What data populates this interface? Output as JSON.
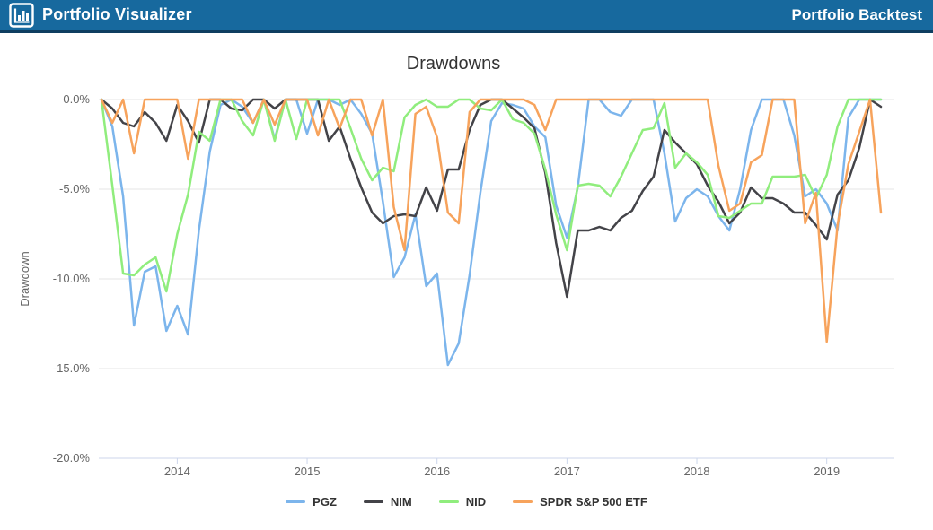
{
  "header": {
    "brand": "Portfolio Visualizer",
    "page_link": "Portfolio Backtest",
    "bg_color": "#17699e",
    "border_color": "#0e3e60"
  },
  "chart_data": {
    "type": "line",
    "title": "Drawdowns",
    "ylabel": "Drawdown",
    "ylim": [
      -20,
      0
    ],
    "grid": true,
    "legend_position": "bottom",
    "y_ticks": [
      0,
      -5,
      -10,
      -15,
      -20
    ],
    "y_tick_labels": [
      "0.0%",
      "-5.0%",
      "-10.0%",
      "-15.0%",
      "-20.0%"
    ],
    "x_tick_labels": [
      "2014",
      "2015",
      "2016",
      "2017",
      "2018",
      "2019"
    ],
    "x": [
      "2013-05",
      "2013-06",
      "2013-07",
      "2013-08",
      "2013-09",
      "2013-10",
      "2013-11",
      "2013-12",
      "2014-01",
      "2014-02",
      "2014-03",
      "2014-04",
      "2014-05",
      "2014-06",
      "2014-07",
      "2014-08",
      "2014-09",
      "2014-10",
      "2014-11",
      "2014-12",
      "2015-01",
      "2015-02",
      "2015-03",
      "2015-04",
      "2015-05",
      "2015-06",
      "2015-07",
      "2015-08",
      "2015-09",
      "2015-10",
      "2015-11",
      "2015-12",
      "2016-01",
      "2016-02",
      "2016-03",
      "2016-04",
      "2016-05",
      "2016-06",
      "2016-07",
      "2016-08",
      "2016-09",
      "2016-10",
      "2016-11",
      "2016-12",
      "2017-01",
      "2017-02",
      "2017-03",
      "2017-04",
      "2017-05",
      "2017-06",
      "2017-07",
      "2017-08",
      "2017-09",
      "2017-10",
      "2017-11",
      "2017-12",
      "2018-01",
      "2018-02",
      "2018-03",
      "2018-04",
      "2018-05",
      "2018-06",
      "2018-07",
      "2018-08",
      "2018-09",
      "2018-10",
      "2018-11",
      "2018-12",
      "2019-01",
      "2019-02",
      "2019-03",
      "2019-04",
      "2019-05"
    ],
    "series": [
      {
        "name": "PGZ",
        "color": "#7cb5ec",
        "values": [
          0,
          -1.5,
          -5.4,
          -12.6,
          -9.6,
          -9.3,
          -12.9,
          -11.5,
          -13.1,
          -7.3,
          -2.9,
          -0.3,
          0,
          -0.4,
          -1.3,
          0,
          -2.2,
          0,
          0,
          -1.9,
          0,
          0,
          -0.3,
          0,
          -0.8,
          -1.9,
          -5.7,
          -9.9,
          -8.8,
          -6.4,
          -10.4,
          -9.7,
          -14.8,
          -13.6,
          -9.8,
          -5.2,
          -1.2,
          -0.2,
          -0.3,
          -0.5,
          -1.5,
          -2.1,
          -5.9,
          -7.7,
          -4.9,
          0,
          0,
          -0.7,
          -0.9,
          0,
          0,
          0,
          -3.0,
          -6.8,
          -5.5,
          -5.0,
          -5.4,
          -6.5,
          -7.3,
          -5.0,
          -1.7,
          0,
          0,
          0,
          -2.0,
          -5.4,
          -5.0,
          -5.8,
          -7.3,
          -1.0,
          0,
          0,
          0
        ]
      },
      {
        "name": "NIM",
        "color": "#434348",
        "values": [
          0,
          -0.5,
          -1.3,
          -1.5,
          -0.7,
          -1.3,
          -2.3,
          -0.3,
          -1.2,
          -2.4,
          0,
          0,
          -0.5,
          -0.6,
          0,
          0,
          -0.5,
          0,
          0,
          0,
          0,
          -2.3,
          -1.5,
          -3.3,
          -4.9,
          -6.3,
          -6.9,
          -6.5,
          -6.4,
          -6.5,
          -4.9,
          -6.2,
          -3.9,
          -3.9,
          -1.7,
          -0.3,
          0,
          0,
          -0.5,
          -1.0,
          -1.6,
          -4.1,
          -8.0,
          -11.0,
          -7.3,
          -7.3,
          -7.1,
          -7.3,
          -6.6,
          -6.2,
          -5.1,
          -4.3,
          -1.7,
          -2.4,
          -3.0,
          -3.6,
          -4.8,
          -5.7,
          -6.9,
          -6.3,
          -4.9,
          -5.5,
          -5.5,
          -5.8,
          -6.3,
          -6.3,
          -7.0,
          -7.8,
          -5.3,
          -4.5,
          -2.7,
          0,
          -0.4
        ]
      },
      {
        "name": "NID",
        "color": "#90ed7d",
        "values": [
          0,
          -4.8,
          -9.7,
          -9.8,
          -9.2,
          -8.8,
          -10.7,
          -7.5,
          -5.3,
          -1.8,
          -2.3,
          0,
          0,
          -1.2,
          -2.0,
          0,
          -2.3,
          0,
          -2.2,
          0,
          0,
          0,
          0,
          -1.6,
          -3.3,
          -4.5,
          -3.8,
          -4.0,
          -1.0,
          -0.3,
          0,
          -0.4,
          -0.4,
          0,
          0,
          -0.5,
          -0.6,
          0,
          -1.1,
          -1.3,
          -1.9,
          -3.9,
          -6.4,
          -8.4,
          -4.8,
          -4.7,
          -4.8,
          -5.4,
          -4.3,
          -3.0,
          -1.7,
          -1.6,
          -0.2,
          -3.8,
          -3.0,
          -3.5,
          -4.2,
          -6.5,
          -6.6,
          -6.2,
          -5.8,
          -5.8,
          -4.3,
          -4.3,
          -4.3,
          -4.2,
          -5.5,
          -4.2,
          -1.5,
          0,
          0,
          0,
          0
        ]
      },
      {
        "name": "SPDR S&P 500 ETF",
        "color": "#f7a35c",
        "values": [
          0,
          -1.3,
          0,
          -3.0,
          0,
          0,
          0,
          0,
          -3.3,
          0,
          0,
          0,
          0,
          0,
          -1.3,
          0,
          -1.4,
          0,
          0,
          0,
          -2.0,
          0,
          -1.6,
          0,
          0,
          -2.0,
          0,
          -6.0,
          -8.4,
          -0.8,
          -0.4,
          -2.1,
          -6.3,
          -6.9,
          -0.7,
          0,
          0,
          0,
          0,
          0,
          -0.3,
          -1.7,
          0,
          0,
          0,
          0,
          0,
          0,
          0,
          0,
          0,
          0,
          0,
          0,
          0,
          0,
          0,
          -3.7,
          -6.2,
          -5.8,
          -3.5,
          -3.1,
          0,
          0,
          0,
          -6.9,
          -5.2,
          -13.5,
          -7.0,
          -3.6,
          -1.8,
          0,
          -6.3
        ]
      }
    ]
  },
  "style": {
    "grid_color": "#e6e6e6",
    "axis_color": "#ccd6eb",
    "label_color": "#666666",
    "title_color": "#333333"
  }
}
